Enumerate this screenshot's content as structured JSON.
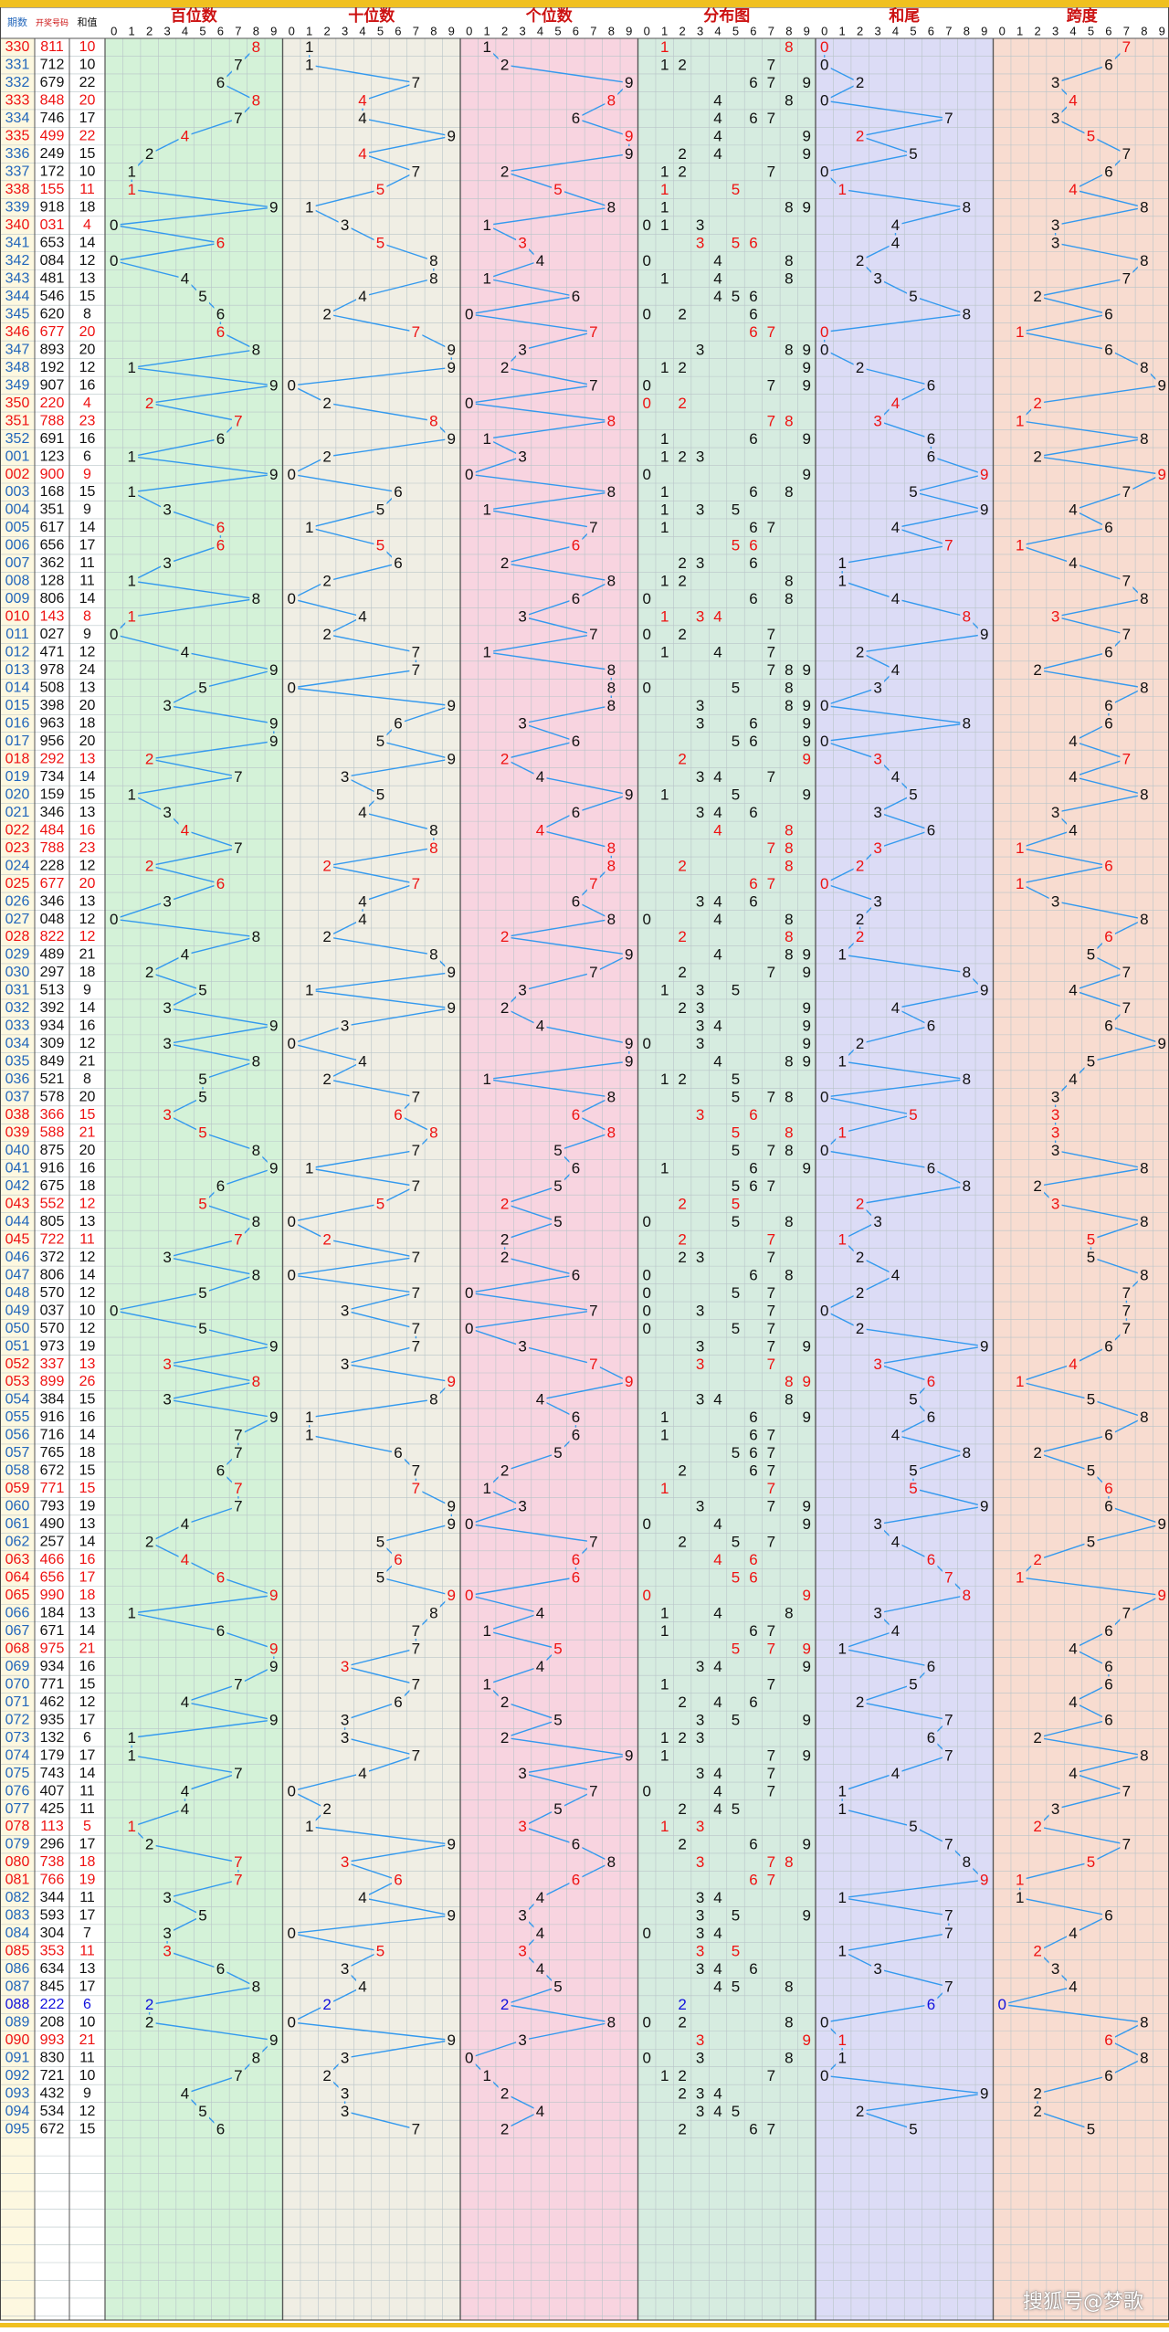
{
  "header": {
    "col_period": "期数",
    "col_number": "开奖号码",
    "col_sum": "和值",
    "groups": [
      "百位数",
      "十位数",
      "个位数",
      "分布图",
      "和尾",
      "跨度"
    ],
    "digits": [
      "0",
      "1",
      "2",
      "3",
      "4",
      "5",
      "6",
      "7",
      "8",
      "9"
    ]
  },
  "colors": {
    "group_backgrounds": [
      "#d4f2d8",
      "#f0eee4",
      "#f8d4e0",
      "#d6ece0",
      "#dcdcf6",
      "#f8dcd0"
    ],
    "line": "#3399ee",
    "red": "#ee1111",
    "blue": "#1111dd",
    "black": "#111111",
    "period_blue": "#2266bb",
    "title_red": "#cc1111",
    "bar": "#f0c020"
  },
  "watermark": "搜狐号@梦歌",
  "chart_data": {
    "type": "table",
    "series_names": [
      "百位数",
      "十位数",
      "个位数",
      "和尾",
      "跨度"
    ],
    "periods": [
      "330",
      "331",
      "332",
      "333",
      "334",
      "335",
      "336",
      "337",
      "338",
      "339",
      "340",
      "341",
      "342",
      "343",
      "344",
      "345",
      "346",
      "347",
      "348",
      "349",
      "350",
      "351",
      "352",
      "001",
      "002",
      "003",
      "004",
      "005",
      "006",
      "007",
      "008",
      "009",
      "010",
      "011",
      "012",
      "013",
      "014",
      "015",
      "016",
      "017",
      "018",
      "019",
      "020",
      "021",
      "022",
      "023",
      "024",
      "025",
      "026",
      "027",
      "028",
      "029",
      "030",
      "031",
      "032",
      "033",
      "034",
      "035",
      "036",
      "037",
      "038",
      "039",
      "040",
      "041",
      "042",
      "043",
      "044",
      "045",
      "046",
      "047",
      "048",
      "049",
      "050",
      "051",
      "052",
      "053",
      "054",
      "055",
      "056",
      "057",
      "058",
      "059",
      "060",
      "061",
      "062",
      "063",
      "064",
      "065",
      "066",
      "067",
      "068",
      "069",
      "070",
      "071",
      "072",
      "073",
      "074",
      "075",
      "076",
      "077",
      "078",
      "079",
      "080",
      "081",
      "082",
      "083",
      "084",
      "085",
      "086",
      "087",
      "088",
      "089",
      "090",
      "091",
      "092",
      "093",
      "094",
      "095"
    ],
    "numbers": [
      "811",
      "712",
      "679",
      "848",
      "746",
      "499",
      "249",
      "172",
      "155",
      "918",
      "031",
      "653",
      "084",
      "481",
      "546",
      "620",
      "677",
      "893",
      "192",
      "907",
      "220",
      "788",
      "691",
      "123",
      "900",
      "168",
      "351",
      "617",
      "656",
      "362",
      "128",
      "806",
      "143",
      "027",
      "471",
      "978",
      "508",
      "398",
      "963",
      "956",
      "292",
      "734",
      "159",
      "346",
      "484",
      "788",
      "228",
      "677",
      "346",
      "048",
      "822",
      "489",
      "297",
      "513",
      "392",
      "934",
      "309",
      "849",
      "521",
      "578",
      "366",
      "588",
      "875",
      "916",
      "675",
      "552",
      "805",
      "722",
      "372",
      "806",
      "570",
      "037",
      "570",
      "973",
      "337",
      "899",
      "384",
      "916",
      "716",
      "765",
      "672",
      "771",
      "793",
      "490",
      "257",
      "466",
      "656",
      "990",
      "184",
      "671",
      "975",
      "934",
      "771",
      "462",
      "935",
      "132",
      "179",
      "743",
      "407",
      "425",
      "113",
      "296",
      "738",
      "766",
      "344",
      "593",
      "304",
      "353",
      "634",
      "845",
      "222",
      "208",
      "993",
      "830",
      "721",
      "432",
      "534",
      "672"
    ],
    "sums": [
      10,
      10,
      22,
      20,
      17,
      22,
      15,
      10,
      11,
      18,
      4,
      14,
      12,
      13,
      15,
      8,
      20,
      20,
      12,
      16,
      4,
      23,
      16,
      6,
      9,
      15,
      9,
      14,
      17,
      11,
      11,
      14,
      8,
      9,
      12,
      24,
      13,
      20,
      18,
      20,
      13,
      14,
      15,
      13,
      16,
      23,
      12,
      20,
      13,
      12,
      12,
      21,
      18,
      9,
      14,
      16,
      12,
      21,
      8,
      20,
      15,
      21,
      20,
      16,
      18,
      12,
      13,
      11,
      12,
      14,
      12,
      10,
      12,
      19,
      13,
      26,
      15,
      16,
      14,
      18,
      15,
      15,
      19,
      13,
      14,
      16,
      17,
      18,
      13,
      14,
      21,
      16,
      15,
      12,
      17,
      6,
      17,
      14,
      11,
      11,
      5,
      17,
      18,
      19,
      11,
      17,
      7,
      11,
      13,
      17,
      6,
      10,
      21,
      11,
      10,
      9,
      12,
      15
    ],
    "red_markers": {
      "hundreds": [
        0,
        3,
        5,
        8,
        11,
        16,
        20,
        21,
        27,
        28,
        32,
        40,
        44,
        46,
        47,
        60,
        61,
        65,
        67,
        74,
        75,
        81,
        85,
        86,
        87,
        90,
        100,
        102,
        103,
        107
      ],
      "tens": [
        3,
        6,
        8,
        11,
        16,
        21,
        28,
        45,
        46,
        47,
        60,
        61,
        65,
        67,
        75,
        81,
        85,
        87,
        91,
        102,
        103,
        107
      ],
      "units": [
        3,
        5,
        8,
        11,
        16,
        21,
        28,
        40,
        44,
        45,
        46,
        47,
        50,
        60,
        61,
        65,
        74,
        75,
        85,
        86,
        87,
        90,
        100,
        103,
        107
      ],
      "distribution": [
        0,
        8,
        11,
        16,
        20,
        21,
        28,
        32,
        40,
        44,
        45,
        46,
        47,
        50,
        60,
        61,
        65,
        67,
        74,
        75,
        81,
        85,
        86,
        87,
        90,
        100,
        102,
        103,
        107,
        112
      ],
      "sum_tail": [
        0,
        5,
        8,
        16,
        20,
        21,
        24,
        28,
        32,
        40,
        45,
        46,
        47,
        50,
        60,
        61,
        65,
        67,
        74,
        75,
        81,
        85,
        86,
        87,
        103,
        112
      ],
      "span": [
        0,
        3,
        5,
        8,
        16,
        20,
        21,
        24,
        28,
        32,
        40,
        45,
        46,
        47,
        50,
        60,
        61,
        65,
        67,
        74,
        75,
        81,
        85,
        86,
        87,
        100,
        102,
        103,
        107,
        112
      ]
    },
    "blue_rows": [
      110
    ],
    "red_period_rows": [
      0,
      3,
      5,
      8,
      10,
      16,
      20,
      21,
      24,
      32,
      40,
      44,
      45,
      47,
      50,
      60,
      61,
      65,
      67,
      74,
      75,
      81,
      85,
      86,
      87,
      90,
      100,
      102,
      103,
      107,
      112
    ]
  }
}
